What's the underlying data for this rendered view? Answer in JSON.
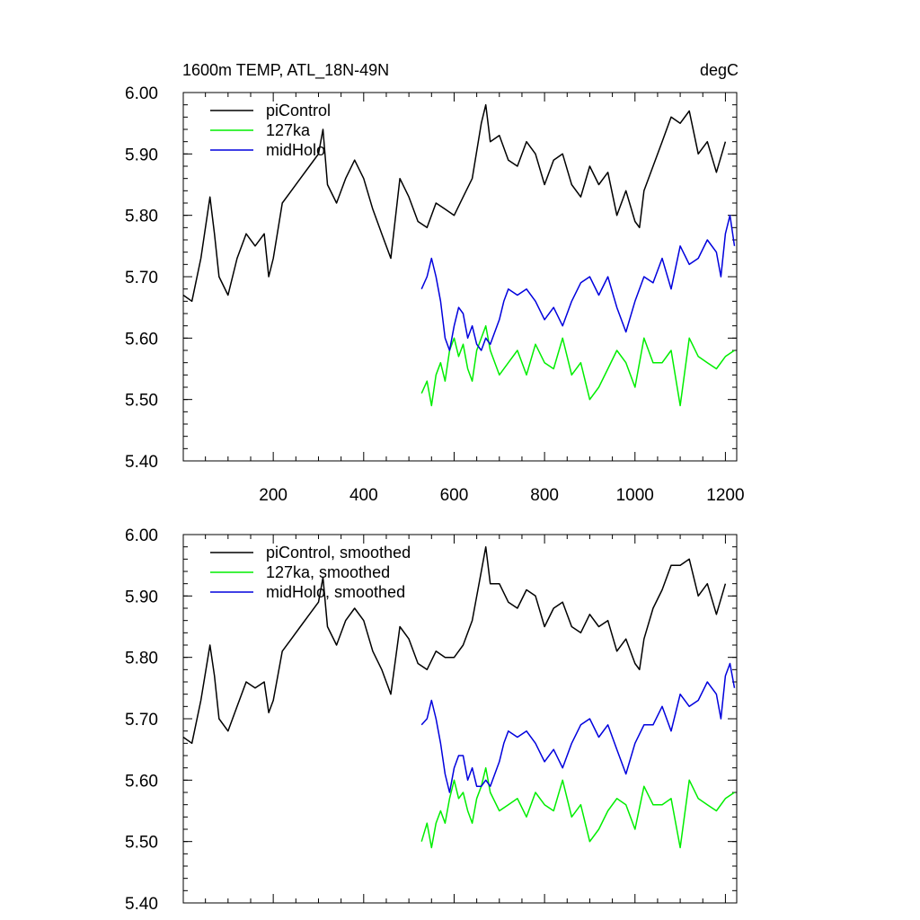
{
  "header": {
    "title_left": "1600m TEMP, ATL_18N-49N",
    "title_right": "degC"
  },
  "colors": {
    "piControl": "#000000",
    "127ka": "#00ee00",
    "midHolo": "#0000dd"
  },
  "chart_data": [
    {
      "type": "line",
      "panel": "top",
      "title": "1600m TEMP, ATL_18N-49N",
      "units": "degC",
      "xlim": [
        1,
        1225
      ],
      "ylim": [
        5.4,
        6.0
      ],
      "yticks": [
        "5.40",
        "5.50",
        "5.60",
        "5.70",
        "5.80",
        "5.90",
        "6.00"
      ],
      "xticks": [
        "200",
        "400",
        "600",
        "800",
        "1000",
        "1200"
      ],
      "legend": [
        "piControl",
        "127ka",
        "midHolo"
      ],
      "series": [
        {
          "name": "piControl",
          "color": "#000000",
          "x": [
            1,
            20,
            40,
            60,
            70,
            80,
            100,
            120,
            140,
            160,
            180,
            190,
            200,
            220,
            240,
            260,
            280,
            300,
            310,
            320,
            340,
            360,
            380,
            400,
            420,
            440,
            460,
            480,
            500,
            520,
            540,
            560,
            580,
            600,
            620,
            640,
            660,
            670,
            680,
            700,
            720,
            740,
            760,
            780,
            800,
            820,
            840,
            860,
            880,
            900,
            920,
            940,
            960,
            980,
            1000,
            1010,
            1020,
            1040,
            1060,
            1080,
            1100,
            1120,
            1140,
            1160,
            1180,
            1200
          ],
          "values": [
            5.67,
            5.66,
            5.73,
            5.83,
            5.77,
            5.7,
            5.67,
            5.73,
            5.77,
            5.75,
            5.77,
            5.7,
            5.73,
            5.82,
            5.84,
            5.86,
            5.88,
            5.9,
            5.94,
            5.85,
            5.82,
            5.86,
            5.89,
            5.86,
            5.81,
            5.77,
            5.73,
            5.86,
            5.83,
            5.79,
            5.78,
            5.82,
            5.81,
            5.8,
            5.83,
            5.86,
            5.95,
            5.98,
            5.92,
            5.93,
            5.89,
            5.88,
            5.92,
            5.9,
            5.85,
            5.89,
            5.9,
            5.85,
            5.83,
            5.88,
            5.85,
            5.87,
            5.8,
            5.84,
            5.79,
            5.78,
            5.84,
            5.88,
            5.92,
            5.96,
            5.95,
            5.97,
            5.9,
            5.92,
            5.87,
            5.92
          ]
        },
        {
          "name": "127ka",
          "color": "#00ee00",
          "x": [
            528,
            540,
            550,
            560,
            570,
            580,
            590,
            600,
            610,
            620,
            630,
            640,
            650,
            660,
            670,
            680,
            700,
            720,
            740,
            760,
            780,
            800,
            820,
            840,
            860,
            880,
            900,
            920,
            940,
            960,
            980,
            1000,
            1020,
            1040,
            1060,
            1080,
            1100,
            1120,
            1140,
            1160,
            1180,
            1200,
            1220
          ],
          "values": [
            5.51,
            5.53,
            5.49,
            5.54,
            5.56,
            5.53,
            5.58,
            5.6,
            5.57,
            5.59,
            5.55,
            5.53,
            5.58,
            5.6,
            5.62,
            5.58,
            5.54,
            5.56,
            5.58,
            5.54,
            5.59,
            5.56,
            5.55,
            5.6,
            5.54,
            5.56,
            5.5,
            5.52,
            5.55,
            5.58,
            5.56,
            5.52,
            5.6,
            5.56,
            5.56,
            5.58,
            5.49,
            5.6,
            5.57,
            5.56,
            5.55,
            5.57,
            5.58
          ]
        },
        {
          "name": "midHolo",
          "color": "#0000dd",
          "x": [
            528,
            540,
            550,
            560,
            570,
            580,
            590,
            600,
            610,
            620,
            630,
            640,
            650,
            660,
            670,
            680,
            700,
            710,
            720,
            740,
            760,
            780,
            800,
            820,
            840,
            860,
            880,
            900,
            920,
            940,
            960,
            980,
            1000,
            1020,
            1040,
            1060,
            1080,
            1100,
            1120,
            1140,
            1160,
            1180,
            1190,
            1200,
            1210,
            1220
          ],
          "values": [
            5.68,
            5.7,
            5.73,
            5.7,
            5.66,
            5.6,
            5.58,
            5.62,
            5.65,
            5.64,
            5.6,
            5.62,
            5.59,
            5.58,
            5.6,
            5.59,
            5.63,
            5.66,
            5.68,
            5.67,
            5.68,
            5.66,
            5.63,
            5.65,
            5.62,
            5.66,
            5.69,
            5.7,
            5.67,
            5.7,
            5.65,
            5.61,
            5.66,
            5.7,
            5.69,
            5.73,
            5.68,
            5.75,
            5.72,
            5.73,
            5.76,
            5.74,
            5.7,
            5.77,
            5.8,
            5.75
          ]
        }
      ]
    },
    {
      "type": "line",
      "panel": "bottom",
      "xlim": [
        1,
        1225
      ],
      "ylim": [
        5.4,
        6.0
      ],
      "yticks": [
        "5.40",
        "5.50",
        "5.60",
        "5.70",
        "5.80",
        "5.90",
        "6.00"
      ],
      "legend": [
        "piControl, smoothed",
        "127ka, smoothed",
        "midHolo, smoothed"
      ],
      "series": [
        {
          "name": "piControl, smoothed",
          "color": "#000000",
          "x": [
            1,
            20,
            40,
            60,
            70,
            80,
            100,
            120,
            140,
            160,
            180,
            190,
            200,
            220,
            240,
            260,
            280,
            300,
            310,
            320,
            340,
            360,
            380,
            400,
            420,
            440,
            460,
            480,
            500,
            520,
            540,
            560,
            580,
            600,
            620,
            640,
            660,
            670,
            680,
            700,
            720,
            740,
            760,
            780,
            800,
            820,
            840,
            860,
            880,
            900,
            920,
            940,
            960,
            980,
            1000,
            1010,
            1020,
            1040,
            1060,
            1080,
            1100,
            1120,
            1140,
            1160,
            1180,
            1200
          ],
          "values": [
            5.67,
            5.66,
            5.73,
            5.82,
            5.77,
            5.7,
            5.68,
            5.72,
            5.76,
            5.75,
            5.76,
            5.71,
            5.73,
            5.81,
            5.83,
            5.85,
            5.87,
            5.89,
            5.93,
            5.85,
            5.82,
            5.86,
            5.88,
            5.86,
            5.81,
            5.78,
            5.74,
            5.85,
            5.83,
            5.79,
            5.78,
            5.81,
            5.8,
            5.8,
            5.82,
            5.86,
            5.94,
            5.98,
            5.92,
            5.92,
            5.89,
            5.88,
            5.91,
            5.9,
            5.85,
            5.88,
            5.89,
            5.85,
            5.84,
            5.87,
            5.85,
            5.86,
            5.81,
            5.83,
            5.79,
            5.78,
            5.83,
            5.88,
            5.91,
            5.95,
            5.95,
            5.96,
            5.9,
            5.92,
            5.87,
            5.92
          ]
        },
        {
          "name": "127ka, smoothed",
          "color": "#00ee00",
          "x": [
            528,
            540,
            550,
            560,
            570,
            580,
            590,
            600,
            610,
            620,
            630,
            640,
            650,
            660,
            670,
            680,
            700,
            720,
            740,
            760,
            780,
            800,
            820,
            840,
            860,
            880,
            900,
            920,
            940,
            960,
            980,
            1000,
            1020,
            1040,
            1060,
            1080,
            1100,
            1120,
            1140,
            1160,
            1180,
            1200,
            1220
          ],
          "values": [
            5.5,
            5.53,
            5.49,
            5.53,
            5.55,
            5.53,
            5.57,
            5.6,
            5.57,
            5.58,
            5.55,
            5.53,
            5.57,
            5.59,
            5.62,
            5.58,
            5.55,
            5.56,
            5.57,
            5.54,
            5.58,
            5.56,
            5.55,
            5.6,
            5.54,
            5.56,
            5.5,
            5.52,
            5.55,
            5.57,
            5.56,
            5.52,
            5.59,
            5.56,
            5.56,
            5.57,
            5.49,
            5.6,
            5.57,
            5.56,
            5.55,
            5.57,
            5.58
          ]
        },
        {
          "name": "midHolo, smoothed",
          "color": "#0000dd",
          "x": [
            528,
            540,
            550,
            560,
            570,
            580,
            590,
            600,
            610,
            620,
            630,
            640,
            650,
            660,
            670,
            680,
            700,
            710,
            720,
            740,
            760,
            780,
            800,
            820,
            840,
            860,
            880,
            900,
            920,
            940,
            960,
            980,
            1000,
            1020,
            1040,
            1060,
            1080,
            1100,
            1120,
            1140,
            1160,
            1180,
            1190,
            1200,
            1210,
            1220
          ],
          "values": [
            5.69,
            5.7,
            5.73,
            5.7,
            5.66,
            5.61,
            5.58,
            5.62,
            5.64,
            5.64,
            5.6,
            5.62,
            5.59,
            5.59,
            5.6,
            5.59,
            5.63,
            5.66,
            5.68,
            5.67,
            5.68,
            5.66,
            5.63,
            5.65,
            5.62,
            5.66,
            5.69,
            5.7,
            5.67,
            5.69,
            5.65,
            5.61,
            5.66,
            5.69,
            5.69,
            5.72,
            5.68,
            5.74,
            5.72,
            5.73,
            5.76,
            5.74,
            5.7,
            5.77,
            5.79,
            5.75
          ]
        }
      ]
    }
  ]
}
